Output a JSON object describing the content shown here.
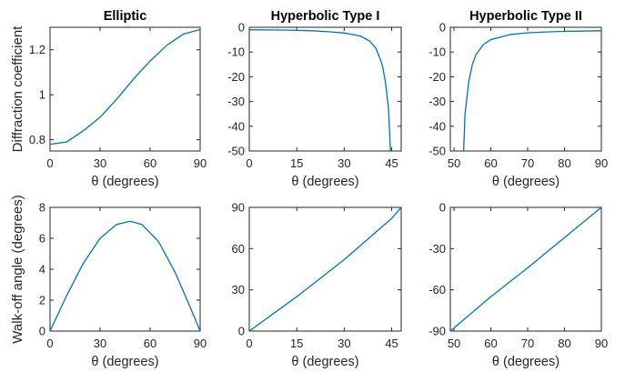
{
  "figure": {
    "row_labels": [
      "Diffraction coefficient",
      "Walk-off angle (degrees)"
    ],
    "line_color": "#0072BD"
  },
  "chart_data": [
    {
      "type": "line",
      "title": "Elliptic",
      "xlabel": "θ (degrees)",
      "ylabel": "Diffraction coefficient",
      "xlim": [
        0,
        90
      ],
      "ylim": [
        0.75,
        1.3
      ],
      "xticks": [
        0,
        30,
        60,
        90
      ],
      "xtick_labels": [
        "0",
        "30",
        "60",
        "90"
      ],
      "yticks": [
        0.8,
        1.0,
        1.2
      ],
      "ytick_labels": [
        "0.8",
        "1",
        "1.2"
      ],
      "grid": false,
      "series": [
        {
          "x": [
            0,
            10,
            20,
            30,
            40,
            50,
            60,
            70,
            80,
            90
          ],
          "y": [
            0.78,
            0.79,
            0.84,
            0.9,
            0.98,
            1.07,
            1.15,
            1.22,
            1.27,
            1.29
          ]
        }
      ]
    },
    {
      "type": "line",
      "title": "Hyperbolic Type I",
      "xlabel": "θ (degrees)",
      "ylabel": "",
      "xlim": [
        0,
        48
      ],
      "ylim": [
        -50,
        0
      ],
      "xticks": [
        0,
        15,
        30,
        45
      ],
      "xtick_labels": [
        "0",
        "15",
        "30",
        "45"
      ],
      "yticks": [
        -50,
        -40,
        -30,
        -20,
        -10,
        0
      ],
      "ytick_labels": [
        "-50",
        "-40",
        "-30",
        "-20",
        "-10",
        "0"
      ],
      "grid": false,
      "series": [
        {
          "x": [
            0,
            10,
            20,
            25,
            30,
            35,
            38,
            40,
            42,
            43,
            44,
            44.6
          ],
          "y": [
            -1.0,
            -1.1,
            -1.4,
            -1.8,
            -2.3,
            -3.5,
            -5.5,
            -8.5,
            -15,
            -22,
            -33,
            -50
          ]
        }
      ]
    },
    {
      "type": "line",
      "title": "Hyperbolic Type II",
      "xlabel": "θ (degrees)",
      "ylabel": "",
      "xlim": [
        49,
        90
      ],
      "ylim": [
        -50,
        0
      ],
      "xticks": [
        50,
        60,
        70,
        80,
        90
      ],
      "xtick_labels": [
        "50",
        "60",
        "70",
        "80",
        "90"
      ],
      "yticks": [
        -50,
        -40,
        -30,
        -20,
        -10,
        0
      ],
      "ytick_labels": [
        "-50",
        "-40",
        "-30",
        "-20",
        "-10",
        "0"
      ],
      "grid": false,
      "series": [
        {
          "x": [
            52.6,
            53,
            54,
            55,
            56,
            58,
            60,
            65,
            70,
            80,
            90
          ],
          "y": [
            -50,
            -35,
            -22,
            -15,
            -11,
            -7,
            -5,
            -3,
            -2.2,
            -1.6,
            -1.4
          ]
        }
      ]
    },
    {
      "type": "line",
      "title": "",
      "xlabel": "θ (degrees)",
      "ylabel": "Walk-off angle (degrees)",
      "xlim": [
        0,
        90
      ],
      "ylim": [
        0,
        8
      ],
      "xticks": [
        0,
        30,
        60,
        90
      ],
      "xtick_labels": [
        "0",
        "30",
        "60",
        "90"
      ],
      "yticks": [
        0,
        2,
        4,
        6,
        8
      ],
      "ytick_labels": [
        "0",
        "2",
        "4",
        "6",
        "8"
      ],
      "grid": false,
      "series": [
        {
          "x": [
            0,
            10,
            20,
            30,
            40,
            48,
            55,
            65,
            75,
            85,
            90
          ],
          "y": [
            0,
            2.3,
            4.4,
            6.0,
            6.9,
            7.1,
            6.9,
            5.8,
            3.8,
            1.3,
            0
          ]
        }
      ]
    },
    {
      "type": "line",
      "title": "",
      "xlabel": "θ (degrees)",
      "ylabel": "",
      "xlim": [
        0,
        48
      ],
      "ylim": [
        0,
        90
      ],
      "xticks": [
        0,
        15,
        30,
        45
      ],
      "xtick_labels": [
        "0",
        "15",
        "30",
        "45"
      ],
      "yticks": [
        0,
        30,
        60,
        90
      ],
      "ytick_labels": [
        "0",
        "30",
        "60",
        "90"
      ],
      "grid": false,
      "series": [
        {
          "x": [
            0,
            15,
            30,
            45,
            48
          ],
          "y": [
            0,
            25,
            52,
            82,
            90
          ]
        }
      ]
    },
    {
      "type": "line",
      "title": "",
      "xlabel": "θ (degrees)",
      "ylabel": "",
      "xlim": [
        49,
        90
      ],
      "ylim": [
        -90,
        0
      ],
      "xticks": [
        50,
        60,
        70,
        80,
        90
      ],
      "xtick_labels": [
        "50",
        "60",
        "70",
        "80",
        "90"
      ],
      "yticks": [
        -90,
        -60,
        -30,
        0
      ],
      "ytick_labels": [
        "-90",
        "-60",
        "-30",
        "0"
      ],
      "grid": false,
      "series": [
        {
          "x": [
            49,
            60,
            70,
            80,
            90
          ],
          "y": [
            -90,
            -65,
            -44,
            -22,
            0
          ]
        }
      ]
    }
  ]
}
